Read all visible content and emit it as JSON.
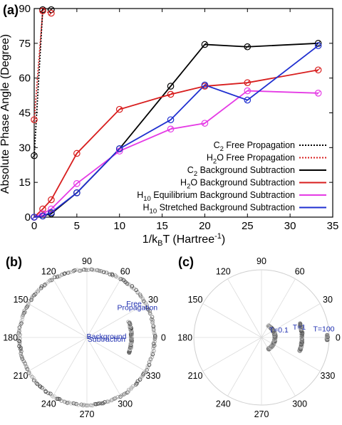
{
  "panels": {
    "a": "(a)",
    "b": "(b)",
    "c": "(c)"
  },
  "chart_data": [
    {
      "type": "line",
      "panel": "(a)",
      "xlabel_main": "1/k",
      "xlabel_sub": "B",
      "xlabel_rest": "T (Hartree",
      "xlabel_sup": "-1",
      "xlabel_end": ")",
      "ylabel": "Absolute Phase Angle (Degree)",
      "xlim": [
        0,
        35
      ],
      "ylim": [
        0,
        90
      ],
      "xticks": [
        0,
        5,
        10,
        15,
        20,
        25,
        30,
        35
      ],
      "yticks": [
        0,
        15,
        30,
        45,
        60,
        75,
        90
      ],
      "grid": false,
      "legend_position": "bottom-right",
      "series": [
        {
          "name": "C2 Free Propagation",
          "leg_main": "C",
          "leg_sub": "2",
          "leg_rest": " Free Propagation",
          "color": "#000000",
          "style": "dotted",
          "markers": true,
          "x": [
            0,
            1,
            2
          ],
          "y": [
            26.5,
            89.5,
            89.5
          ]
        },
        {
          "name": "H2O Free Propagation",
          "leg_main": "H",
          "leg_sub": "2",
          "leg_rest": "O Free Propagation",
          "color": "#d81e1e",
          "style": "dotted",
          "markers": true,
          "x": [
            0,
            1,
            2
          ],
          "y": [
            42,
            89,
            88
          ]
        },
        {
          "name": "C2 Background Subtraction",
          "leg_main": "C",
          "leg_sub": "2",
          "leg_rest": " Background Subtraction",
          "color": "#000000",
          "style": "solid",
          "markers": true,
          "x": [
            0,
            1,
            2,
            5,
            10,
            16,
            20,
            25,
            33.3
          ],
          "y": [
            0,
            0.5,
            1.5,
            10.5,
            29.5,
            56.5,
            74.5,
            73.5,
            75
          ]
        },
        {
          "name": "H2O Background Subtraction",
          "leg_main": "H",
          "leg_sub": "2",
          "leg_rest": "O Background Subtraction",
          "color": "#d81e1e",
          "style": "solid",
          "markers": true,
          "x": [
            0,
            1,
            2,
            5,
            10,
            16,
            20,
            25,
            33.3
          ],
          "y": [
            0,
            3.5,
            7.5,
            27.5,
            46.5,
            53,
            56.5,
            58,
            63.5
          ]
        },
        {
          "name": "H10 Equilibrium Background Subtraction",
          "leg_main": "H",
          "leg_sub": "10",
          "leg_rest": " Equilibrium Background Subtraction",
          "color": "#e53be5",
          "style": "solid",
          "markers": true,
          "x": [
            0,
            1,
            2,
            5,
            10,
            16,
            20,
            25,
            33.3
          ],
          "y": [
            0,
            1.5,
            3.5,
            14.5,
            28.5,
            38,
            40.5,
            54.5,
            53.5
          ]
        },
        {
          "name": "H10 Stretched Background Subtraction",
          "leg_main": "H",
          "leg_sub": "10",
          "leg_rest": " Stretched Background Subtraction",
          "color": "#1f2fd0",
          "style": "solid",
          "markers": true,
          "x": [
            0,
            1,
            2,
            5,
            10,
            16,
            20,
            25,
            33.3
          ],
          "y": [
            0,
            0.5,
            2,
            10.5,
            29.5,
            42,
            57,
            50.5,
            74
          ]
        }
      ]
    },
    {
      "type": "polar-scatter",
      "panel": "(b)",
      "angle_labels": [
        "0",
        "30",
        "60",
        "90",
        "120",
        "150",
        "180",
        "210",
        "240",
        "270",
        "300",
        "330"
      ],
      "annotations": [
        {
          "text": "Free",
          "angle_deg": 36,
          "radius": 0.86
        },
        {
          "text": "Propagation",
          "angle_deg": 31,
          "radius": 0.87
        },
        {
          "text": "Background",
          "angle_deg": 4,
          "radius": 0.29
        },
        {
          "text": "Subtraction",
          "angle_deg": -4,
          "radius": 0.29
        }
      ],
      "series": [
        {
          "name": "Free Propagation",
          "radius": 1.0,
          "angle_range_deg": [
            0,
            360
          ],
          "spread": "full"
        },
        {
          "name": "Background Subtraction",
          "radius": 0.66,
          "angle_range_deg": [
            -20,
            20
          ],
          "spread": "arc"
        }
      ]
    },
    {
      "type": "polar-scatter",
      "panel": "(c)",
      "angle_labels": [
        "0",
        "30",
        "60",
        "90",
        "120",
        "150",
        "180",
        "210",
        "240",
        "270",
        "300",
        "330"
      ],
      "annotations": [
        {
          "text": "T=0.1",
          "angle_deg": 24,
          "radius": 0.28
        },
        {
          "text": "T=1",
          "angle_deg": 16,
          "radius": 0.58
        },
        {
          "text": "T=100",
          "angle_deg": 8,
          "radius": 0.93
        }
      ],
      "series": [
        {
          "name": "T=0.1",
          "radius": 0.2,
          "angle_range_deg": [
            -60,
            60
          ],
          "spread": "arc"
        },
        {
          "name": "T=1",
          "radius": 0.6,
          "angle_range_deg": [
            -20,
            20
          ],
          "spread": "arc"
        },
        {
          "name": "T=100",
          "radius": 0.97,
          "angle_range_deg": [
            -2,
            2
          ],
          "spread": "arc"
        }
      ]
    }
  ]
}
